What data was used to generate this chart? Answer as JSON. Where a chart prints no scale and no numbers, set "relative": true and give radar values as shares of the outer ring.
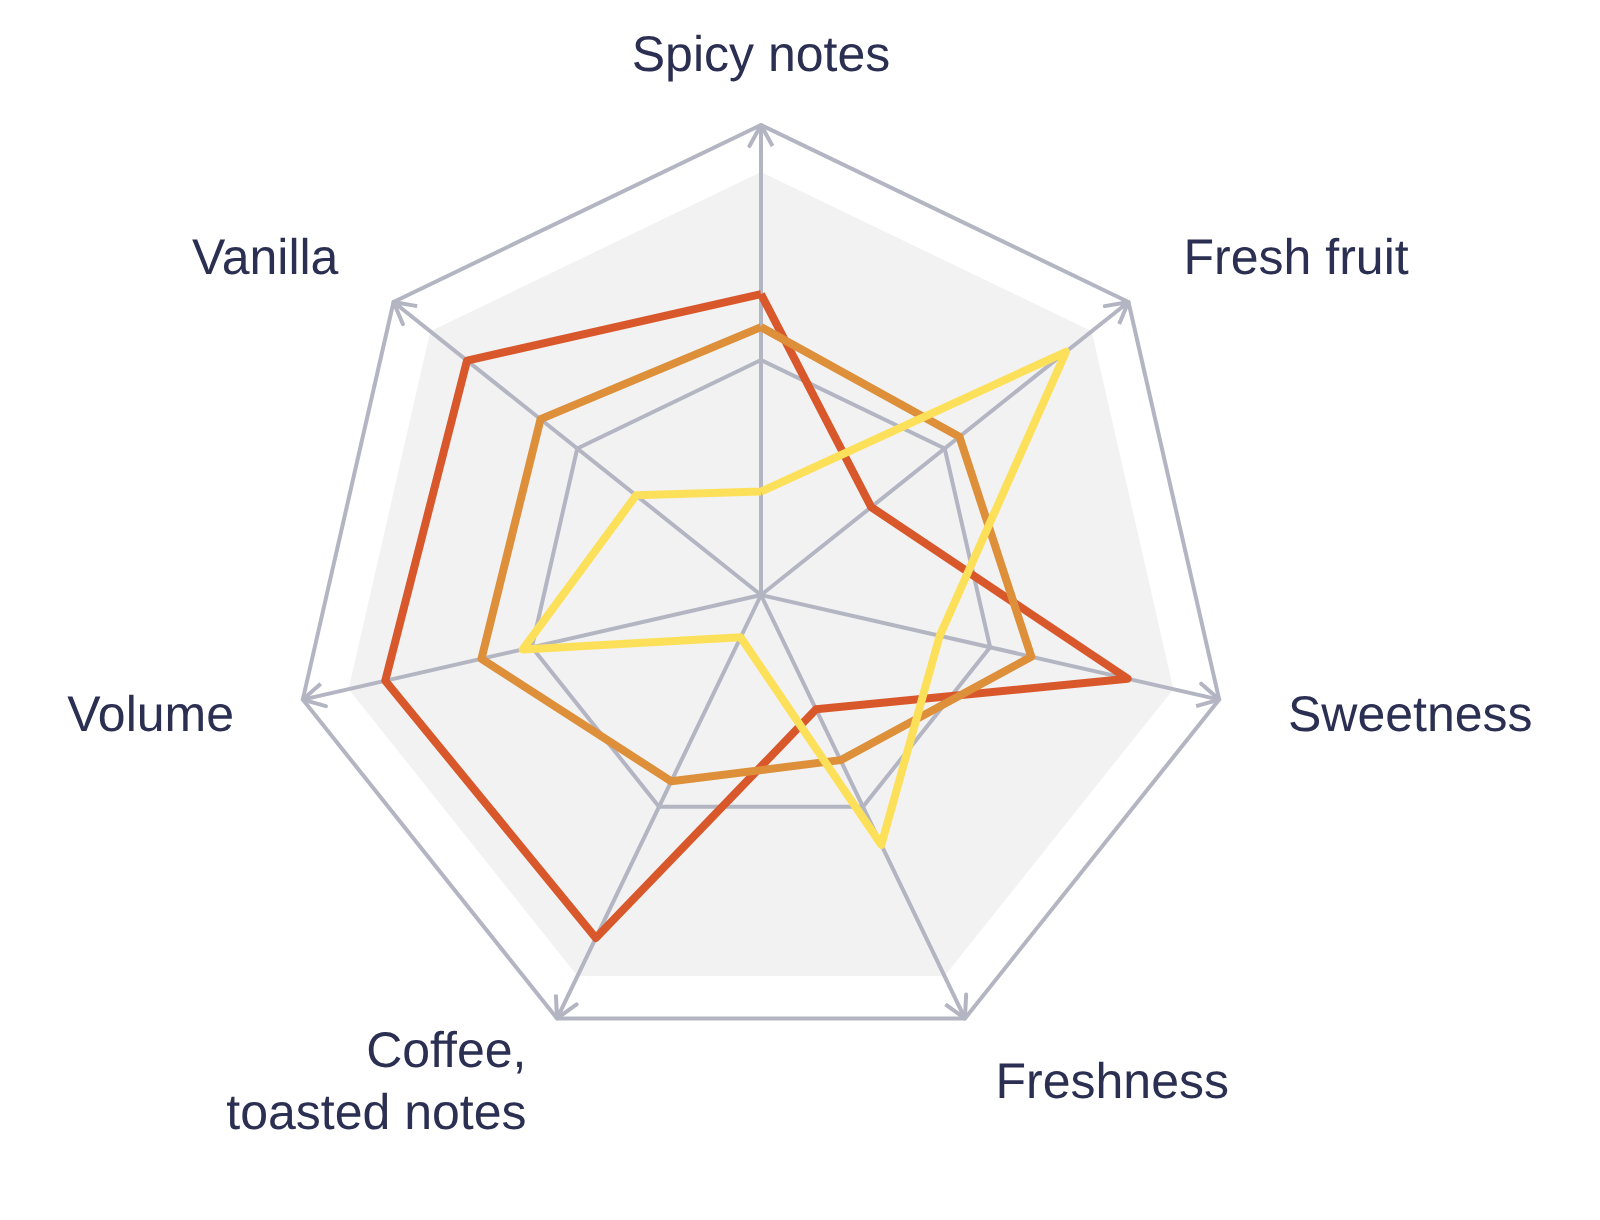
{
  "chart_data": {
    "type": "radar",
    "relative": true,
    "grid": true,
    "categories": [
      "Spicy notes",
      "Fresh fruit",
      "Sweetness",
      "Freshness",
      "Coffee, toasted notes",
      "Volume",
      "Vanilla"
    ],
    "series": [
      {
        "color": "#d9582b",
        "values": [
          0.64,
          0.3,
          0.8,
          0.27,
          0.81,
          0.82,
          0.8
        ]
      },
      {
        "color": "#dd8f3a",
        "values": [
          0.57,
          0.54,
          0.59,
          0.39,
          0.44,
          0.61,
          0.6
        ]
      },
      {
        "color": "#fde05a",
        "values": [
          0.22,
          0.83,
          0.39,
          0.59,
          0.1,
          0.52,
          0.34
        ]
      }
    ]
  }
}
